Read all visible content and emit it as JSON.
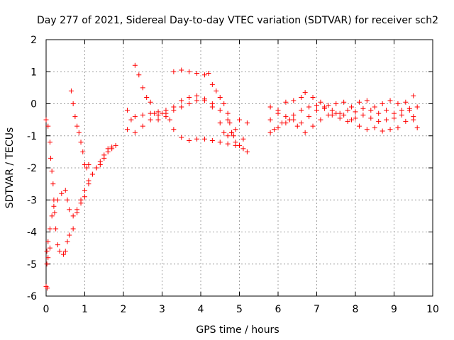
{
  "chart_data": {
    "type": "scatter",
    "title": "Day 277 of 2021, Sidereal Day-to-day VTEC variation (SDTVAR) for receiver sch2",
    "xlabel": "GPS time / hours",
    "ylabel": "SDTVAR / TECUs",
    "xlim": [
      0,
      10
    ],
    "ylim": [
      -6,
      2
    ],
    "xticks": [
      "0",
      "1",
      "2",
      "3",
      "4",
      "5",
      "6",
      "7",
      "8",
      "9",
      "10"
    ],
    "yticks": [
      "-6",
      "-5",
      "-4",
      "-3",
      "-2",
      "-1",
      "0",
      "1",
      "2"
    ],
    "grid": true,
    "marker": "+",
    "color": "#ff0000",
    "series": [
      {
        "name": "",
        "points": [
          [
            0.0,
            -0.5
          ],
          [
            0.05,
            -0.7
          ],
          [
            0.1,
            -1.2
          ],
          [
            0.12,
            -1.7
          ],
          [
            0.15,
            -2.1
          ],
          [
            0.18,
            -2.5
          ],
          [
            0.2,
            -3.0
          ],
          [
            0.22,
            -3.4
          ],
          [
            0.25,
            -3.9
          ],
          [
            0.3,
            -4.4
          ],
          [
            0.35,
            -4.6
          ],
          [
            0.45,
            -4.7
          ],
          [
            0.5,
            -4.6
          ],
          [
            0.55,
            -4.3
          ],
          [
            0.6,
            -4.1
          ],
          [
            0.7,
            -3.9
          ],
          [
            0.8,
            -3.4
          ],
          [
            0.9,
            -3.1
          ],
          [
            1.0,
            -2.9
          ],
          [
            1.1,
            -2.5
          ],
          [
            1.2,
            -2.2
          ],
          [
            1.3,
            -2.0
          ],
          [
            1.4,
            -1.9
          ],
          [
            1.5,
            -1.7
          ],
          [
            1.6,
            -1.5
          ],
          [
            1.7,
            -1.4
          ],
          [
            1.8,
            -1.3
          ],
          [
            0.02,
            -4.6
          ],
          [
            0.05,
            -4.3
          ],
          [
            0.1,
            -3.9
          ],
          [
            0.15,
            -3.5
          ],
          [
            0.2,
            -3.2
          ],
          [
            0.3,
            -3.0
          ],
          [
            0.4,
            -2.8
          ],
          [
            0.5,
            -2.7
          ],
          [
            0.55,
            -3.0
          ],
          [
            0.6,
            -3.3
          ],
          [
            0.7,
            -3.5
          ],
          [
            0.8,
            -3.3
          ],
          [
            0.9,
            -3.0
          ],
          [
            1.0,
            -2.7
          ],
          [
            1.1,
            -2.4
          ],
          [
            1.2,
            -2.2
          ],
          [
            1.3,
            -2.0
          ],
          [
            1.4,
            -1.8
          ],
          [
            1.5,
            -1.6
          ],
          [
            1.6,
            -1.4
          ],
          [
            1.7,
            -1.35
          ],
          [
            0.65,
            0.4
          ],
          [
            0.7,
            0.0
          ],
          [
            0.75,
            -0.4
          ],
          [
            0.8,
            -0.7
          ],
          [
            0.85,
            -0.9
          ],
          [
            0.9,
            -1.2
          ],
          [
            0.95,
            -1.5
          ],
          [
            1.0,
            -1.9
          ],
          [
            1.05,
            -2.0
          ],
          [
            1.1,
            -1.9
          ],
          [
            0.0,
            -5.7
          ],
          [
            0.03,
            -5.75
          ],
          [
            0.02,
            -5.0
          ],
          [
            0.05,
            -4.8
          ],
          [
            0.1,
            -4.5
          ],
          [
            2.1,
            -0.2
          ],
          [
            2.2,
            -0.5
          ],
          [
            2.3,
            -0.4
          ],
          [
            2.5,
            -0.35
          ],
          [
            2.7,
            -0.3
          ],
          [
            2.9,
            -0.25
          ],
          [
            3.1,
            -0.3
          ],
          [
            3.3,
            -0.2
          ],
          [
            3.5,
            -0.1
          ],
          [
            3.7,
            0.0
          ],
          [
            3.9,
            0.1
          ],
          [
            4.1,
            0.1
          ],
          [
            4.3,
            0.0
          ],
          [
            4.5,
            -0.2
          ],
          [
            4.7,
            -0.5
          ],
          [
            4.8,
            -0.9
          ],
          [
            4.9,
            -1.2
          ],
          [
            5.0,
            -1.3
          ],
          [
            5.1,
            -1.1
          ],
          [
            5.2,
            -0.6
          ],
          [
            2.1,
            -0.8
          ],
          [
            2.3,
            -0.9
          ],
          [
            2.5,
            -0.7
          ],
          [
            2.7,
            -0.5
          ],
          [
            2.9,
            -0.35
          ],
          [
            3.1,
            -0.4
          ],
          [
            3.3,
            -0.1
          ],
          [
            3.5,
            0.1
          ],
          [
            3.7,
            0.2
          ],
          [
            3.9,
            0.25
          ],
          [
            4.1,
            0.15
          ],
          [
            4.3,
            -0.1
          ],
          [
            4.5,
            -0.6
          ],
          [
            4.6,
            -0.9
          ],
          [
            4.7,
            -1.0
          ],
          [
            4.9,
            -0.8
          ],
          [
            5.0,
            -0.5
          ],
          [
            2.3,
            1.2
          ],
          [
            2.4,
            0.9
          ],
          [
            2.5,
            0.5
          ],
          [
            2.6,
            0.2
          ],
          [
            2.7,
            0.05
          ],
          [
            2.8,
            -0.3
          ],
          [
            2.9,
            -0.5
          ],
          [
            3.0,
            -0.3
          ],
          [
            3.1,
            -0.2
          ],
          [
            3.2,
            -0.5
          ],
          [
            3.3,
            -0.8
          ],
          [
            3.5,
            -1.05
          ],
          [
            3.7,
            -1.15
          ],
          [
            3.9,
            -1.1
          ],
          [
            4.1,
            -1.1
          ],
          [
            4.3,
            -1.15
          ],
          [
            4.5,
            -1.2
          ],
          [
            4.7,
            -1.25
          ],
          [
            4.9,
            -1.3
          ],
          [
            5.1,
            -1.4
          ],
          [
            5.2,
            -1.5
          ],
          [
            3.3,
            1.0
          ],
          [
            3.5,
            1.05
          ],
          [
            3.7,
            1.0
          ],
          [
            3.9,
            0.95
          ],
          [
            4.1,
            0.9
          ],
          [
            4.2,
            0.95
          ],
          [
            4.3,
            0.6
          ],
          [
            4.4,
            0.4
          ],
          [
            4.5,
            0.2
          ],
          [
            4.6,
            0.0
          ],
          [
            4.7,
            -0.3
          ],
          [
            4.75,
            -0.6
          ],
          [
            4.8,
            -0.9
          ],
          [
            4.85,
            -1.0
          ],
          [
            5.8,
            -0.1
          ],
          [
            6.0,
            -0.3
          ],
          [
            6.2,
            -0.4
          ],
          [
            6.4,
            -0.5
          ],
          [
            6.6,
            -0.6
          ],
          [
            6.8,
            -0.4
          ],
          [
            7.0,
            -0.2
          ],
          [
            7.2,
            -0.1
          ],
          [
            7.4,
            -0.2
          ],
          [
            7.6,
            -0.3
          ],
          [
            7.8,
            -0.2
          ],
          [
            8.0,
            -0.25
          ],
          [
            8.2,
            -0.15
          ],
          [
            8.4,
            -0.2
          ],
          [
            8.6,
            -0.3
          ],
          [
            8.8,
            -0.2
          ],
          [
            9.0,
            -0.3
          ],
          [
            9.2,
            -0.2
          ],
          [
            9.4,
            -0.15
          ],
          [
            9.6,
            -0.1
          ],
          [
            5.8,
            -0.5
          ],
          [
            6.0,
            -0.2
          ],
          [
            6.2,
            0.05
          ],
          [
            6.4,
            0.1
          ],
          [
            6.6,
            0.2
          ],
          [
            6.7,
            0.35
          ],
          [
            6.9,
            0.2
          ],
          [
            7.1,
            0.05
          ],
          [
            7.3,
            -0.05
          ],
          [
            7.5,
            0.0
          ],
          [
            7.7,
            0.05
          ],
          [
            7.9,
            -0.1
          ],
          [
            8.1,
            0.05
          ],
          [
            8.3,
            0.1
          ],
          [
            8.5,
            -0.1
          ],
          [
            8.7,
            0.0
          ],
          [
            8.9,
            0.1
          ],
          [
            9.1,
            0.0
          ],
          [
            9.3,
            0.05
          ],
          [
            9.5,
            0.25
          ],
          [
            5.9,
            -0.8
          ],
          [
            6.1,
            -0.6
          ],
          [
            6.3,
            -0.5
          ],
          [
            6.5,
            -0.7
          ],
          [
            6.7,
            -0.9
          ],
          [
            6.9,
            -0.7
          ],
          [
            7.1,
            -0.5
          ],
          [
            7.3,
            -0.35
          ],
          [
            7.5,
            -0.3
          ],
          [
            7.7,
            -0.35
          ],
          [
            7.9,
            -0.5
          ],
          [
            8.1,
            -0.7
          ],
          [
            8.3,
            -0.8
          ],
          [
            8.5,
            -0.75
          ],
          [
            8.7,
            -0.85
          ],
          [
            8.9,
            -0.8
          ],
          [
            9.1,
            -0.75
          ],
          [
            9.3,
            -0.55
          ],
          [
            9.5,
            -0.5
          ],
          [
            9.6,
            -0.75
          ],
          [
            5.8,
            -0.9
          ],
          [
            6.0,
            -0.75
          ],
          [
            6.2,
            -0.6
          ],
          [
            6.4,
            -0.35
          ],
          [
            6.6,
            -0.2
          ],
          [
            6.8,
            -0.1
          ],
          [
            7.0,
            -0.05
          ],
          [
            7.2,
            -0.15
          ],
          [
            7.4,
            -0.35
          ],
          [
            7.6,
            -0.45
          ],
          [
            7.8,
            -0.55
          ],
          [
            8.0,
            -0.45
          ],
          [
            8.2,
            -0.35
          ],
          [
            8.4,
            -0.45
          ],
          [
            8.6,
            -0.55
          ],
          [
            8.8,
            -0.5
          ],
          [
            9.0,
            -0.45
          ],
          [
            9.2,
            -0.35
          ],
          [
            9.4,
            -0.2
          ],
          [
            9.5,
            -0.4
          ]
        ]
      }
    ]
  }
}
